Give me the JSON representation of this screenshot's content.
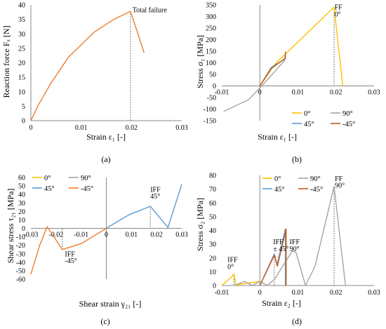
{
  "chart_data": [
    {
      "type": "line",
      "panel": "(a)",
      "xlabel": "Strain ε₁ [-]",
      "ylabel": "Reaction force Fₓ [N]",
      "xlim": [
        0,
        0.03
      ],
      "ylim": [
        0,
        40
      ],
      "xticks": [
        "0",
        "0.01",
        "0.02",
        "0.03"
      ],
      "yticks": [
        "0",
        "5",
        "10",
        "15",
        "20",
        "25",
        "30",
        "35",
        "40"
      ],
      "grid": false,
      "colors": {
        "curve": "#ED7D31",
        "marker": "#7F7F7F"
      },
      "series": [
        {
          "x": [
            0,
            0.0015,
            0.004,
            0.0075,
            0.0125,
            0.0165,
            0.0198,
            0.0211,
            0.0225
          ],
          "y": [
            0,
            5.5,
            13,
            22,
            30.5,
            35,
            37.8,
            31,
            23.5
          ]
        }
      ],
      "vlines": [
        {
          "x": 0.0198,
          "y": 37.8
        }
      ],
      "annotations": [
        {
          "text": "Total failure",
          "x": 0.0202,
          "y": 37.4
        }
      ]
    },
    {
      "type": "line",
      "panel": "(b)",
      "xlabel": "Strain ε₁ [-]",
      "ylabel": "Stress σ₁ [MPa]",
      "xlim": [
        -0.01,
        0.03
      ],
      "ylim": [
        -150,
        350
      ],
      "xticks": [
        "-0.01",
        "0",
        "0.01",
        "0.02",
        "0.03"
      ],
      "yticks": [
        "-150",
        "-100",
        "-50",
        "0",
        "50",
        "100",
        "150",
        "200",
        "250",
        "300",
        "350"
      ],
      "grid": false,
      "legend_position": "bottom-right",
      "series": [
        {
          "name": "0°",
          "color": "#FFC000",
          "x": [
            0,
            0.004,
            0.0195,
            0.0218
          ],
          "y": [
            0,
            95,
            340,
            0
          ]
        },
        {
          "name": "90°",
          "color": "#A5A5A5",
          "x": [
            -0.0095,
            -0.003,
            0.0005,
            0.0065,
            0.0068
          ],
          "y": [
            -110,
            -60,
            0,
            110,
            150
          ]
        },
        {
          "name": "45°",
          "color": "#5B9BD5",
          "x": [
            0,
            0.003,
            0.0067,
            0.0067
          ],
          "y": [
            0,
            80,
            118,
            140
          ]
        },
        {
          "name": "-45°",
          "color": "#C55A11",
          "x": [
            0,
            0.003,
            0.0067,
            0.0067
          ],
          "y": [
            0,
            75,
            120,
            145
          ]
        }
      ],
      "vlines": [
        {
          "x": 0.0195,
          "y": 340
        }
      ],
      "annotations": [
        {
          "text": "FF",
          "x": 0.0196,
          "y": 330
        },
        {
          "text": "0°",
          "x": 0.0196,
          "y": 300
        }
      ]
    },
    {
      "type": "line",
      "panel": "(c)",
      "xlabel": "Shear strain γ₂₁ [-]",
      "ylabel": "Shear stress τ₂₁ [MPa]",
      "xlim": [
        -0.03,
        0.03
      ],
      "ylim": [
        -60,
        60
      ],
      "xticks": [
        "-0.03",
        "-0.02",
        "-0.01",
        "0",
        "0.01",
        "0.02",
        "0.03"
      ],
      "yticks": [
        "-60",
        "-50",
        "-40",
        "-30",
        "-20",
        "-10",
        "0",
        "10",
        "20",
        "30",
        "40",
        "50",
        "60"
      ],
      "grid": false,
      "legend_position": "top-left",
      "series": [
        {
          "name": "0°",
          "color": "#FFC000",
          "x": [],
          "y": []
        },
        {
          "name": "90°",
          "color": "#A5A5A5",
          "x": [],
          "y": []
        },
        {
          "name": "45°",
          "color": "#5B9BD5",
          "x": [
            0,
            0.005,
            0.009,
            0.0175,
            0.0245,
            0.03
          ],
          "y": [
            0,
            9,
            16,
            26,
            1,
            52
          ]
        },
        {
          "name": "-45°",
          "color": "#ED7D31",
          "x": [
            -0.03,
            -0.0265,
            -0.0235,
            -0.0175,
            -0.01,
            0
          ],
          "y": [
            -54,
            -20,
            2,
            -25,
            -18,
            0
          ]
        }
      ],
      "vlines": [
        {
          "x": 0.0175,
          "y": 26
        },
        {
          "x": -0.0175,
          "y": -25
        }
      ],
      "annotations": [
        {
          "text": "IFF",
          "x": 0.0175,
          "y": 43
        },
        {
          "text": "45°",
          "x": 0.0175,
          "y": 35
        },
        {
          "text": "IFF",
          "x": -0.0165,
          "y": -33
        },
        {
          "text": "-45°",
          "x": -0.0165,
          "y": -41
        }
      ]
    },
    {
      "type": "line",
      "panel": "(d)",
      "xlabel": "Strain ε₂ [-]",
      "ylabel": "Stress σ₂ [MPa]",
      "xlim": [
        -0.01,
        0.03
      ],
      "ylim": [
        0,
        80
      ],
      "xticks": [
        "-0.01",
        "0",
        "0.01",
        "0.02",
        "0.03"
      ],
      "yticks": [
        "0",
        "10",
        "20",
        "30",
        "40",
        "50",
        "60",
        "70",
        "80"
      ],
      "grid": false,
      "legend_position": "top-left",
      "series": [
        {
          "name": "0°",
          "color": "#FFC000",
          "x": [
            -0.01,
            -0.0075,
            -0.0068,
            -0.0063,
            -0.005,
            0
          ],
          "y": [
            0,
            6,
            8.5,
            0,
            1,
            3
          ]
        },
        {
          "name": "90°",
          "color": "#A5A5A5",
          "x": [
            -0.0068,
            -0.004,
            -0.002,
            0,
            0.002,
            0.004,
            0.006,
            0.0085,
            0.0095,
            0.012,
            0.0145,
            0.0195,
            0.0225
          ],
          "y": [
            0,
            3,
            0,
            3,
            0,
            5,
            14,
            25,
            24,
            0,
            14,
            72,
            0
          ]
        },
        {
          "name": "45°",
          "color": "#5B9BD5",
          "x": [
            0,
            0.0038,
            0.0045,
            0.0067,
            0.0067
          ],
          "y": [
            0,
            23,
            15,
            41,
            0
          ]
        },
        {
          "name": "-45°",
          "color": "#C55A11",
          "x": [
            0,
            0.0038,
            0.0046,
            0.0069,
            0.0069
          ],
          "y": [
            0,
            22,
            14,
            41,
            0
          ]
        }
      ],
      "vlines": [
        {
          "x": -0.0068,
          "y": 8.5
        },
        {
          "x": 0.0038,
          "y": 22.5
        },
        {
          "x": 0.0069,
          "y": 23
        },
        {
          "x": 0.0195,
          "y": 72
        }
      ],
      "annotations": [
        {
          "text": "IFF",
          "x": -0.0085,
          "y": 17
        },
        {
          "text": "0°",
          "x": -0.0085,
          "y": 12
        },
        {
          "text": "IFF",
          "x": 0.0035,
          "y": 30
        },
        {
          "text": "± 45°",
          "x": 0.0035,
          "y": 25
        },
        {
          "text": "IFF",
          "x": 0.0078,
          "y": 30
        },
        {
          "text": "90°",
          "x": 0.0078,
          "y": 25
        },
        {
          "text": "FF",
          "x": 0.0197,
          "y": 76
        },
        {
          "text": "90°",
          "x": 0.0197,
          "y": 71
        }
      ]
    }
  ]
}
